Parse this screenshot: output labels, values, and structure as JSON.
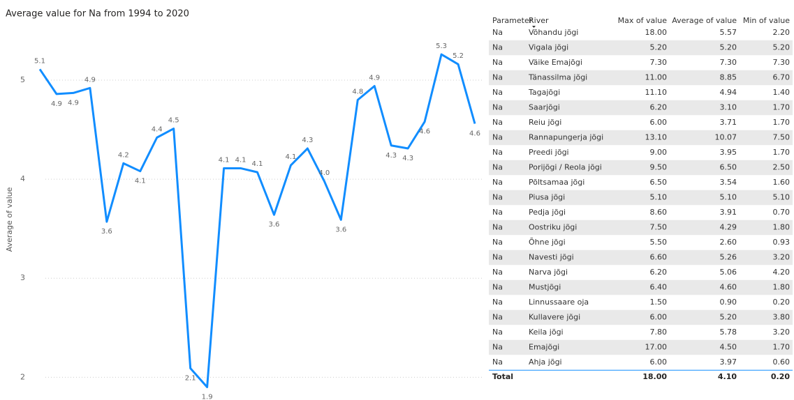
{
  "chart_data": {
    "type": "line",
    "title": "Average value for Na from 1994 to 2020",
    "y_label": "Average of value",
    "values": [
      5.11,
      4.86,
      4.87,
      4.92,
      3.57,
      4.16,
      4.08,
      4.42,
      4.51,
      2.09,
      1.9,
      4.11,
      4.11,
      4.07,
      3.64,
      4.14,
      4.31,
      3.98,
      3.59,
      4.8,
      4.94,
      4.34,
      4.31,
      4.58,
      5.26,
      5.16,
      4.56
    ],
    "value_labels": [
      "5.1",
      "4.9",
      "4.9",
      "4.9",
      "3.6",
      "4.2",
      "4.1",
      "4.4",
      "4.5",
      "2.1",
      "1.9",
      "4.1",
      "4.1",
      "4.1",
      "3.6",
      "4.1",
      "4.3",
      "4.0",
      "3.6",
      "4.8",
      "4.9",
      "4.3",
      "4.3",
      "4.6",
      "5.3",
      "5.2",
      "4.6"
    ],
    "color": "#118DFF",
    "ylim": [
      1.77,
      5.45
    ],
    "yticks": [
      2,
      3,
      4,
      5
    ],
    "grid": true
  },
  "table": {
    "columns": [
      "Parameter",
      "River",
      "Max of value",
      "Average of value",
      "Min of value"
    ],
    "rows": [
      [
        "Na",
        "Võhandu jõgi",
        "18.00",
        "5.57",
        "2.20"
      ],
      [
        "Na",
        "Vigala jõgi",
        "5.20",
        "5.20",
        "5.20"
      ],
      [
        "Na",
        "Väike Emajõgi",
        "7.30",
        "7.30",
        "7.30"
      ],
      [
        "Na",
        "Tänassilma jõgi",
        "11.00",
        "8.85",
        "6.70"
      ],
      [
        "Na",
        "Tagajõgi",
        "11.10",
        "4.94",
        "1.40"
      ],
      [
        "Na",
        "Saarjõgi",
        "6.20",
        "3.10",
        "1.70"
      ],
      [
        "Na",
        "Reiu jõgi",
        "6.00",
        "3.71",
        "1.70"
      ],
      [
        "Na",
        "Rannapungerja jõgi",
        "13.10",
        "10.07",
        "7.50"
      ],
      [
        "Na",
        "Preedi jõgi",
        "9.00",
        "3.95",
        "1.70"
      ],
      [
        "Na",
        "Porijõgi / Reola jõgi",
        "9.50",
        "6.50",
        "2.50"
      ],
      [
        "Na",
        "Põltsamaa jõgi",
        "6.50",
        "3.54",
        "1.60"
      ],
      [
        "Na",
        "Piusa jõgi",
        "5.10",
        "5.10",
        "5.10"
      ],
      [
        "Na",
        "Pedja jõgi",
        "8.60",
        "3.91",
        "0.70"
      ],
      [
        "Na",
        "Oostriku jõgi",
        "7.50",
        "4.29",
        "1.80"
      ],
      [
        "Na",
        "Õhne jõgi",
        "5.50",
        "2.60",
        "0.93"
      ],
      [
        "Na",
        "Navesti jõgi",
        "6.60",
        "5.26",
        "3.20"
      ],
      [
        "Na",
        "Narva jõgi",
        "6.20",
        "5.06",
        "4.20"
      ],
      [
        "Na",
        "Mustjõgi",
        "6.40",
        "4.60",
        "1.80"
      ],
      [
        "Na",
        "Linnussaare oja",
        "1.50",
        "0.90",
        "0.20"
      ],
      [
        "Na",
        "Kullavere jõgi",
        "6.00",
        "5.20",
        "3.80"
      ],
      [
        "Na",
        "Keila jõgi",
        "7.80",
        "5.78",
        "3.20"
      ],
      [
        "Na",
        "Emajõgi",
        "17.00",
        "4.50",
        "1.70"
      ],
      [
        "Na",
        "Ahja jõgi",
        "6.00",
        "3.97",
        "0.60"
      ]
    ],
    "total": {
      "label": "Total",
      "values": [
        "18.00",
        "4.10",
        "0.20"
      ]
    }
  }
}
